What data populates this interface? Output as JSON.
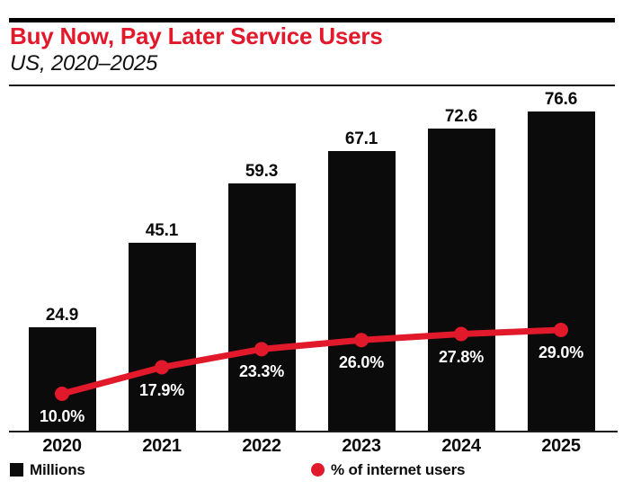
{
  "header": {
    "title": "Buy Now, Pay Later Service Users",
    "subtitle": "US, 2020–2025"
  },
  "legend": {
    "bar_label": "Millions",
    "line_label": "% of internet users"
  },
  "colors": {
    "red": "#e2182b",
    "black": "#0b0b0b",
    "text": "#111111",
    "background": "#ffffff"
  },
  "chart_data": {
    "type": "bar",
    "subtype": "bar-with-line-overlay",
    "title": "Buy Now, Pay Later Service Users",
    "subtitle": "US, 2020–2025",
    "categories": [
      "2020",
      "2021",
      "2022",
      "2023",
      "2024",
      "2025"
    ],
    "series": [
      {
        "name": "Millions",
        "type": "bar",
        "color": "#0b0b0b",
        "values": [
          24.9,
          45.1,
          59.3,
          67.1,
          72.6,
          76.6
        ],
        "labels": [
          "24.9",
          "45.1",
          "59.3",
          "67.1",
          "72.6",
          "76.6"
        ]
      },
      {
        "name": "% of internet users",
        "type": "line",
        "color": "#e2182b",
        "values": [
          10.0,
          17.9,
          23.3,
          26.0,
          27.8,
          29.0
        ],
        "labels": [
          "10.0%",
          "17.9%",
          "23.3%",
          "26.0%",
          "27.8%",
          "29.0%"
        ]
      }
    ],
    "xlabel": "",
    "ylabel": "Millions",
    "y2label": "% of internet users",
    "ylim": [
      0,
      80
    ],
    "y2lim": [
      0,
      40
    ],
    "grid": false,
    "legend_position": "bottom"
  }
}
